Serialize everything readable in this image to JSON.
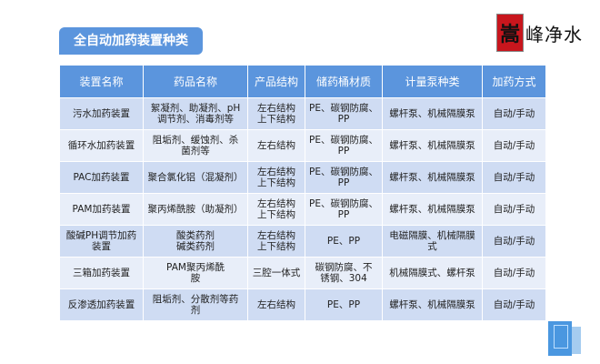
{
  "title": "全自动加药装置种类",
  "logo": {
    "seal_char": "嵩",
    "text": "峰净水"
  },
  "table": {
    "headers": [
      "装置名称",
      "药品名称",
      "产品结构",
      "储药桶材质",
      "计量泵种类",
      "加药方式"
    ],
    "rows": [
      [
        "污水加药装置",
        "絮凝剂、助凝剂、pH\n调节剂、消毒剂等",
        "左右结构\n上下结构",
        "PE、碳钢防腐、\nPP",
        "螺杆泵、机械隔膜泵",
        "自动/手动"
      ],
      [
        "循环水加药装置",
        "阻垢剂、缓蚀剂、杀\n菌剂等",
        "左右结构",
        "PE、碳钢防腐、\nPP",
        "螺杆泵、机械隔膜泵",
        "自动/手动"
      ],
      [
        "PAC加药装置",
        "聚合氯化铝（混凝剂）",
        "左右结构\n上下结构",
        "PE、碳钢防腐、\nPP",
        "螺杆泵、机械隔膜泵",
        "自动/手动"
      ],
      [
        "PAM加药装置",
        "聚丙烯酰胺（助凝剂）",
        "左右结构\n上下结构",
        "PE、碳钢防腐、\nPP",
        "螺杆泵、机械隔膜泵",
        "自动/手动"
      ],
      [
        "酸碱PH调节加药\n装置",
        "酸类药剂\n碱类药剂",
        "左右结构\n上下结构",
        "PE、PP",
        "电磁隔膜、机械隔膜\n式",
        "自动/手动"
      ],
      [
        "三箱加药装置",
        "PAM聚丙烯酰\n胺",
        "三腔一体式",
        "碳钢防腐、不\n锈钢、304",
        "机械隔膜式、螺杆泵",
        "自动/手动"
      ],
      [
        "反渗透加药装置",
        "阻垢剂、分散剂等药\n剂",
        "左右结构",
        "PE、PP",
        "螺杆泵、机械隔膜泵",
        "自动/手动"
      ]
    ]
  },
  "colors": {
    "header": "#5b95dd",
    "row_dark": "#cfdcf3",
    "row_light": "#e8eef9"
  }
}
